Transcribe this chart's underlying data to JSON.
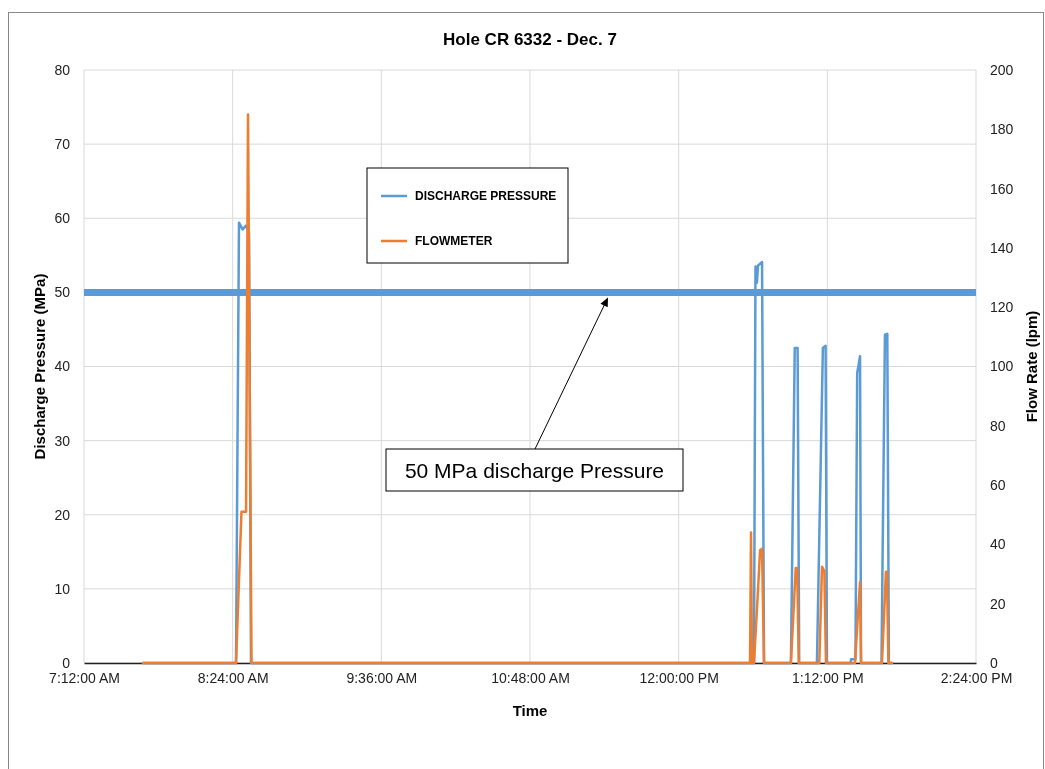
{
  "chart_data": {
    "type": "line",
    "title": "Hole CR 6332 - Dec. 7",
    "xlabel": "Time",
    "ylabel": "Discharge Pressure (MPa)",
    "y2label": "Flow Rate (lpm)",
    "xlim": [
      7.2,
      14.4
    ],
    "xticks": [
      {
        "value": 7.2,
        "label": "7:12:00 AM"
      },
      {
        "value": 8.4,
        "label": "8:24:00 AM"
      },
      {
        "value": 9.6,
        "label": "9:36:00 AM"
      },
      {
        "value": 10.8,
        "label": "10:48:00 AM"
      },
      {
        "value": 12.0,
        "label": "12:00:00 PM"
      },
      {
        "value": 13.2,
        "label": "1:12:00 PM"
      },
      {
        "value": 14.4,
        "label": "2:24:00 PM"
      }
    ],
    "ylim": [
      0,
      80
    ],
    "yticks": [
      0,
      10,
      20,
      30,
      40,
      50,
      60,
      70,
      80
    ],
    "y2lim": [
      0,
      200
    ],
    "y2ticks": [
      0,
      20,
      40,
      60,
      80,
      100,
      120,
      140,
      160,
      180,
      200
    ],
    "grid": true,
    "legend": "top left",
    "line_style": "solid",
    "marker": "none",
    "series": [
      {
        "name": "DISCHARGE PRESSURE",
        "color": "#5b9bd5",
        "x": [
          7.676,
          8.427,
          8.451,
          8.48,
          8.508,
          8.532,
          8.548,
          12.608,
          12.62,
          12.632,
          12.64,
          12.673,
          12.689,
          12.906,
          12.937,
          12.96,
          12.973,
          13.116,
          13.164,
          13.186,
          13.197,
          13.388,
          13.391,
          13.415,
          13.427,
          13.441,
          13.464,
          13.472,
          13.637,
          13.665,
          13.684,
          13.697,
          13.722
        ],
        "values": [
          0,
          0,
          59.4,
          58.5,
          59,
          58,
          0,
          0,
          53.5,
          51.3,
          53.6,
          54.1,
          0,
          0,
          42.5,
          42.5,
          0,
          0,
          42.5,
          42.8,
          0,
          0,
          0.5,
          0.5,
          0.5,
          39.1,
          41.4,
          0,
          0,
          44.3,
          44.4,
          0,
          0
        ]
      },
      {
        "name": "FLOWMETER",
        "color": "#ed7d31",
        "axis": "y2",
        "x": [
          7.676,
          8.427,
          8.471,
          8.508,
          8.524,
          8.552,
          12.576,
          12.584,
          12.592,
          12.608,
          12.637,
          12.657,
          12.673,
          12.689,
          12.906,
          12.945,
          12.957,
          12.969,
          13.135,
          13.157,
          13.176,
          13.189,
          13.423,
          13.464,
          13.472,
          13.641,
          13.673,
          13.681,
          13.693,
          13.722
        ],
        "values": [
          0,
          0,
          51,
          51,
          185,
          0,
          0,
          44,
          0,
          0,
          22,
          38,
          38.5,
          0,
          0,
          32,
          32,
          0,
          0,
          32.5,
          31,
          0,
          0,
          27.3,
          0,
          0,
          30.8,
          30.8,
          0,
          0
        ]
      }
    ],
    "ref_lines": [
      {
        "axis": "y",
        "value": 50,
        "color": "#5b9bd5",
        "label": "50 MPa discharge Pressure"
      }
    ]
  }
}
